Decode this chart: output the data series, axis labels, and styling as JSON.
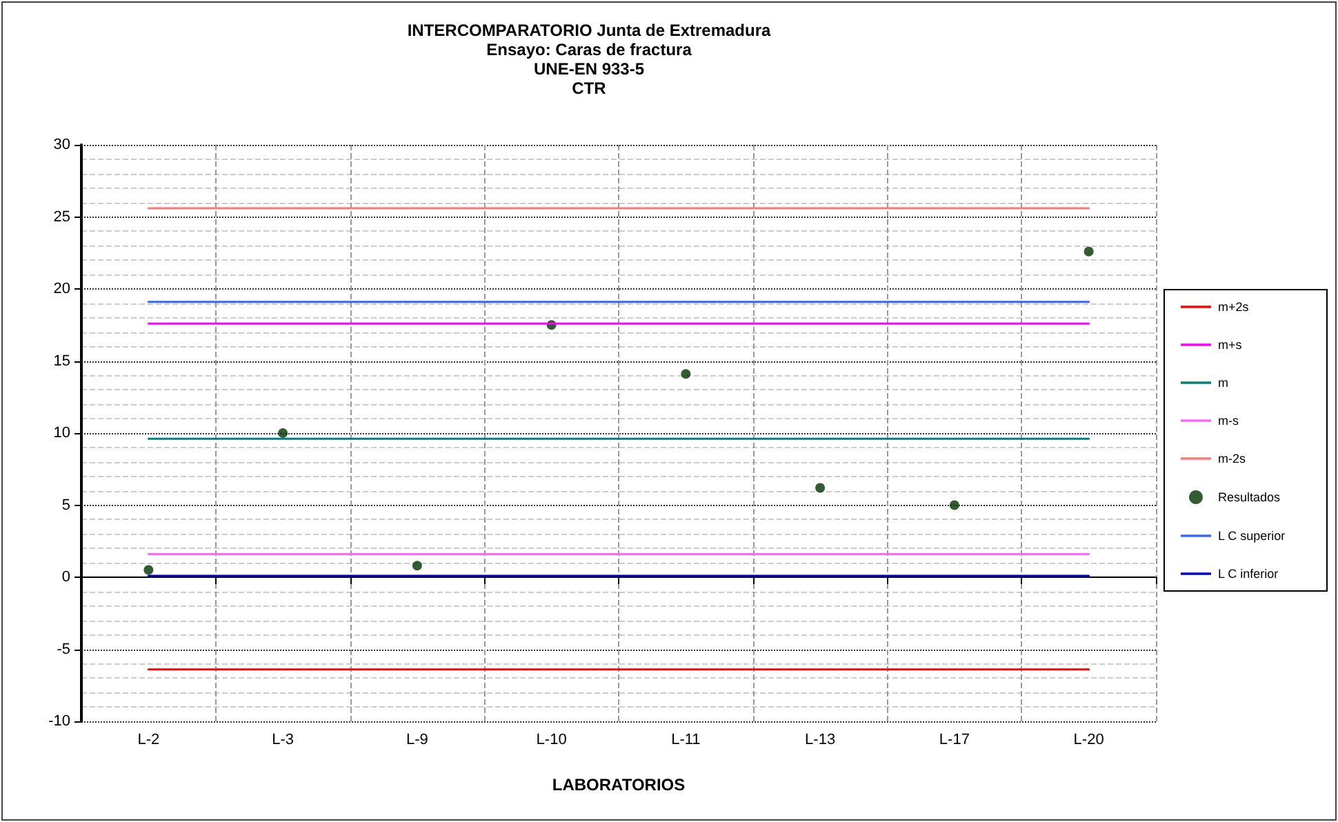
{
  "chart_data": {
    "type": "scatter",
    "title": "INTERCOMPARATORIO Junta de Extremadura\nEnsayo: Caras de fractura\nUNE-EN 933-5\nCTR",
    "xlabel": "LABORATORIOS",
    "categories": [
      "L-2",
      "L-3",
      "L-9",
      "L-10",
      "L-11",
      "L-13",
      "L-17",
      "L-20"
    ],
    "series": [
      {
        "name": "m+2s",
        "type": "line",
        "marker": "none",
        "color": "#ff0000",
        "values": [
          -6.4,
          -6.4,
          -6.4,
          -6.4,
          -6.4,
          -6.4,
          -6.4,
          -6.4
        ]
      },
      {
        "name": "m+s",
        "type": "line",
        "marker": "none",
        "color": "#ff00ff",
        "values": [
          17.6,
          17.6,
          17.6,
          17.6,
          17.6,
          17.6,
          17.6,
          17.6
        ]
      },
      {
        "name": "m",
        "type": "line",
        "marker": "none",
        "color": "#008080",
        "values": [
          9.6,
          9.6,
          9.6,
          9.6,
          9.6,
          9.6,
          9.6,
          9.6
        ]
      },
      {
        "name": "m-s",
        "type": "line",
        "marker": "none",
        "color": "#ff66ff",
        "values": [
          1.6,
          1.6,
          1.6,
          1.6,
          1.6,
          1.6,
          1.6,
          1.6
        ]
      },
      {
        "name": "m-2s",
        "type": "line",
        "marker": "none",
        "color": "#ff7777",
        "values": [
          25.6,
          25.6,
          25.6,
          25.6,
          25.6,
          25.6,
          25.6,
          25.6
        ]
      },
      {
        "name": "Resultados",
        "marker": "circle",
        "color": "#003300",
        "values": [
          0.5,
          10.0,
          0.8,
          17.5,
          14.1,
          6.2,
          5.0,
          22.6
        ]
      },
      {
        "name": "L C superior",
        "type": "line",
        "marker": "none",
        "color": "#3366ff",
        "values": [
          19.1,
          19.1,
          19.1,
          19.1,
          19.1,
          19.1,
          19.1,
          19.1
        ]
      },
      {
        "name": "L C inferior",
        "type": "line",
        "marker": "none",
        "color": "#0000cc",
        "values": [
          0.1,
          0.1,
          0.1,
          0.1,
          0.1,
          0.1,
          0.1,
          0.1
        ]
      }
    ],
    "ylim": [
      -10,
      30
    ],
    "yticks": [
      -10,
      -5,
      0,
      5,
      10,
      15,
      20,
      25,
      30
    ],
    "grid": true,
    "legend": "right"
  }
}
